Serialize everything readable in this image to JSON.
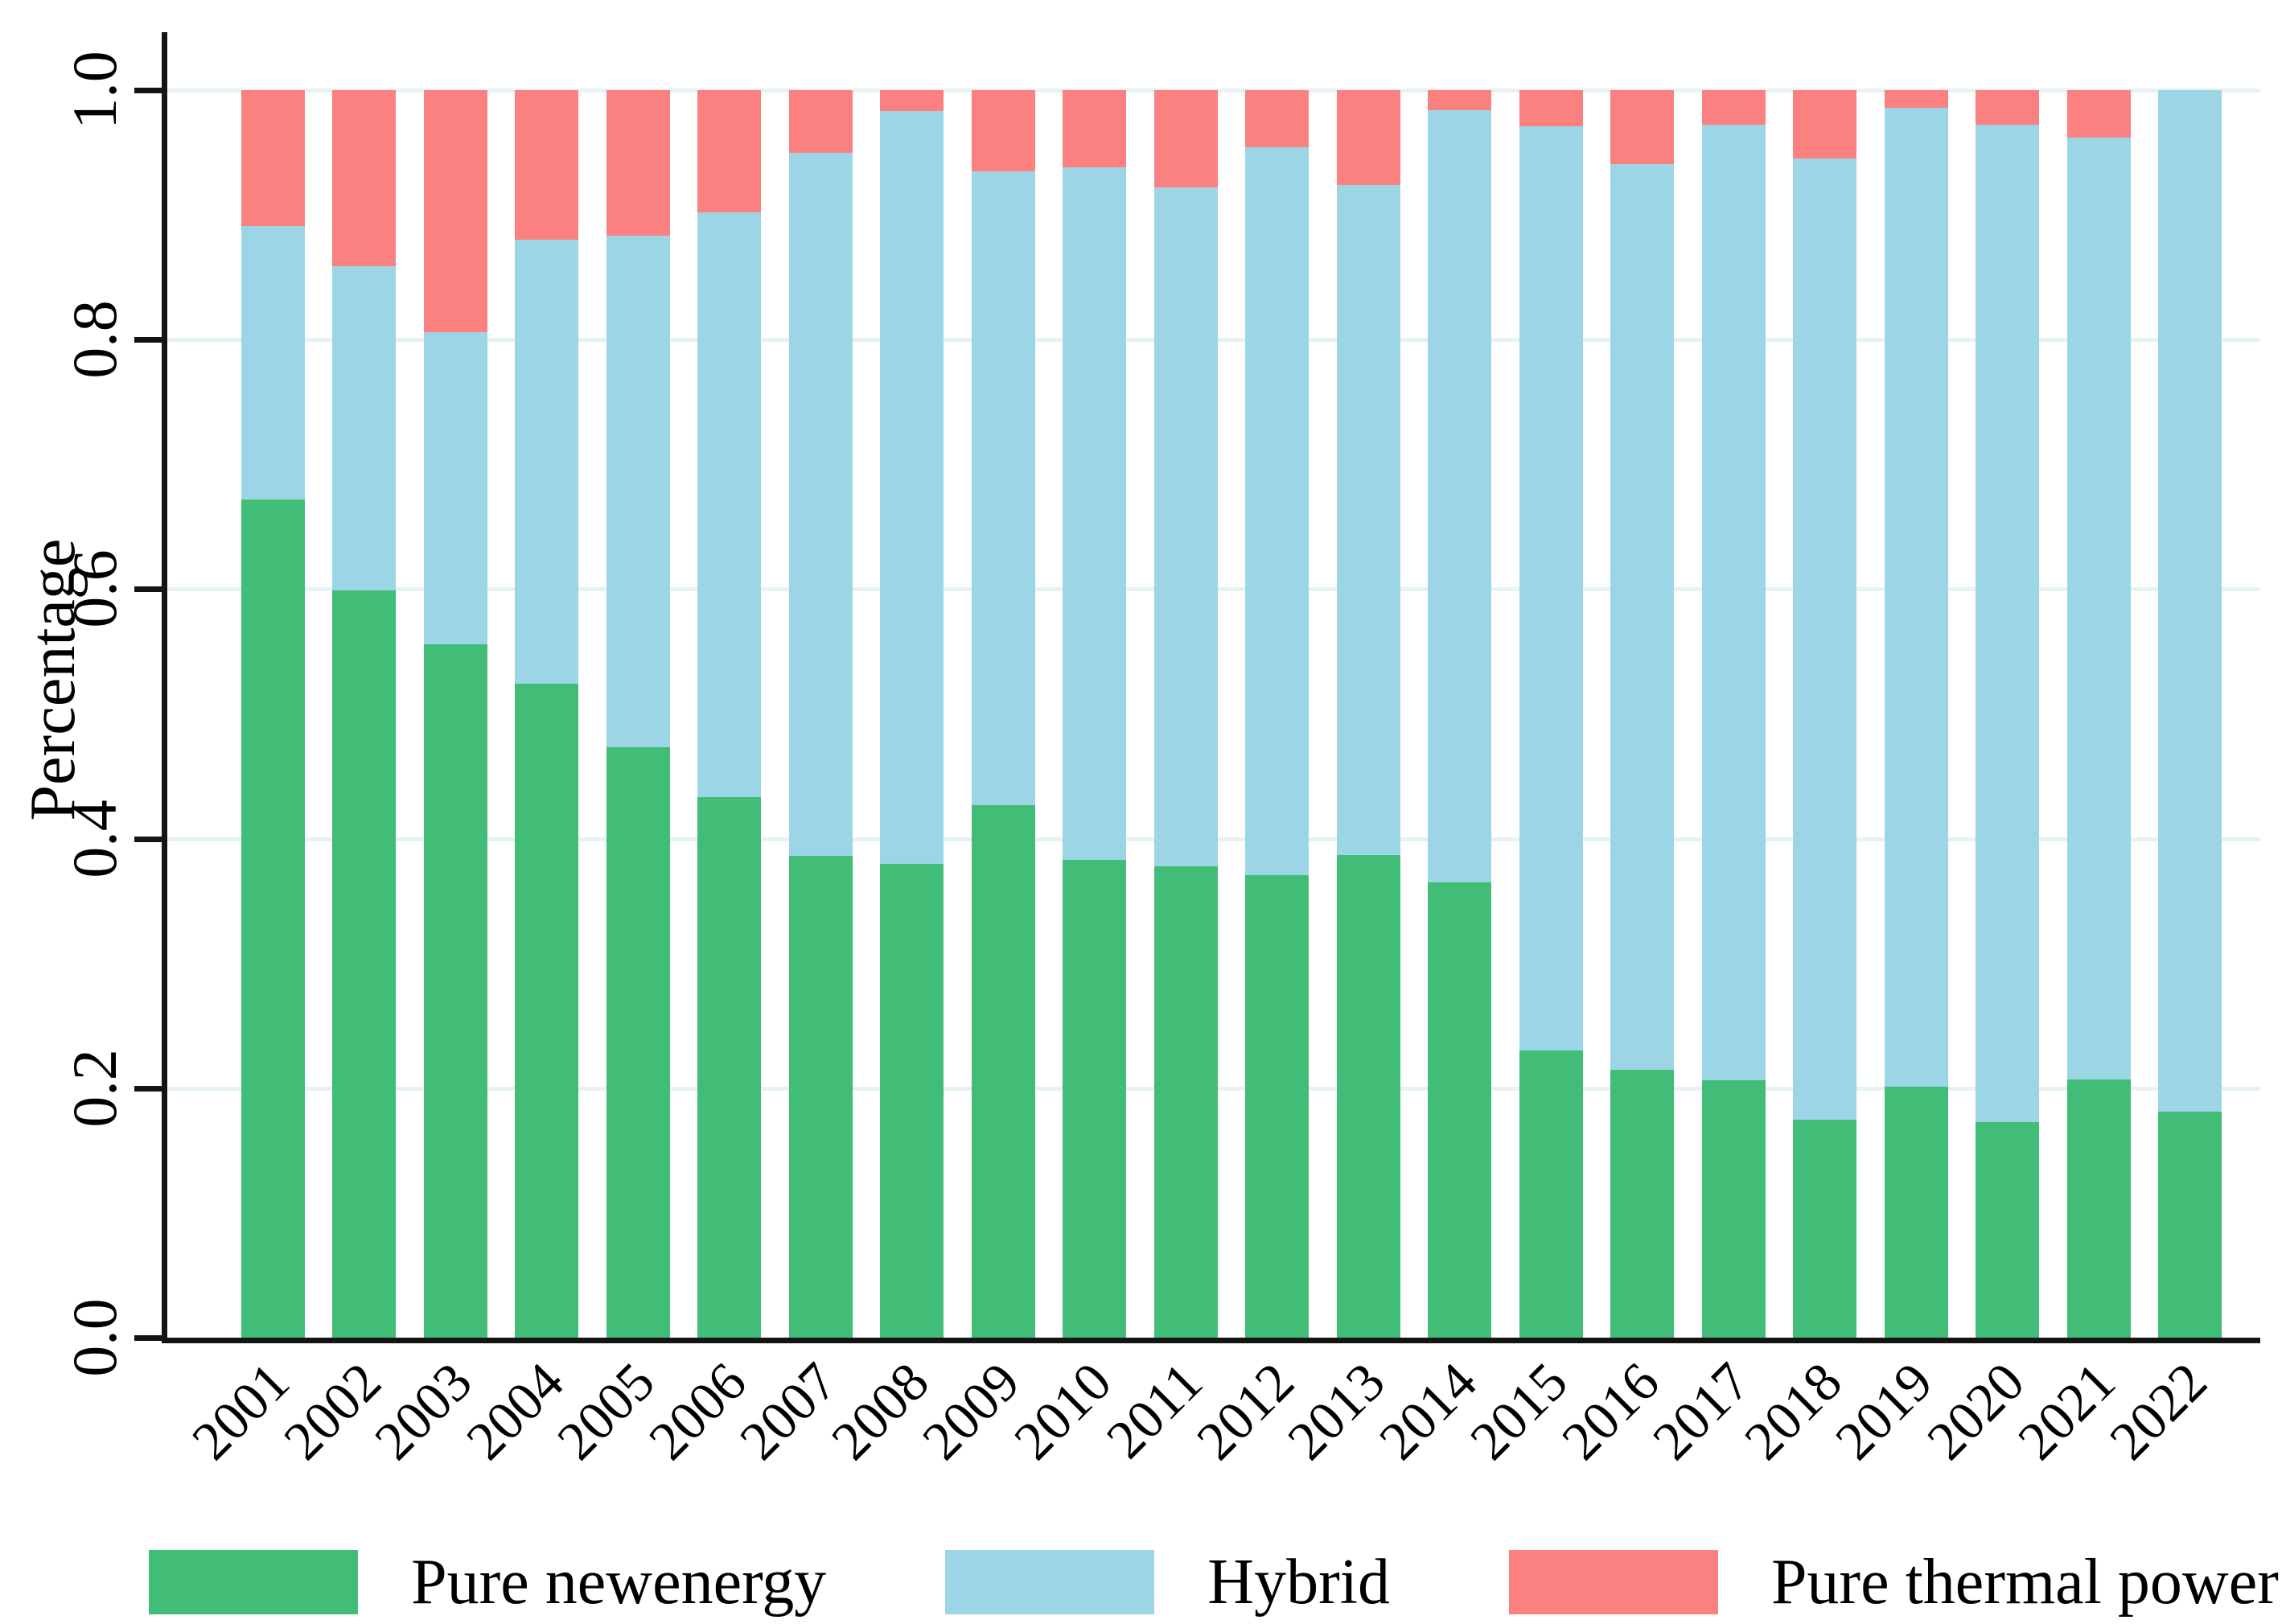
{
  "chart_data": {
    "type": "bar",
    "stacked": true,
    "title": "",
    "xlabel": "",
    "ylabel": "Percentage",
    "ylim": [
      0.0,
      1.0
    ],
    "yticks": [
      "0.0",
      "0.2",
      "0.4",
      "0.6",
      "0.8",
      "1.0"
    ],
    "grid": "horizontal",
    "legend_position": "bottom",
    "x_label_rotation_deg": 45,
    "categories": [
      "2001",
      "2002",
      "2003",
      "2004",
      "2005",
      "2006",
      "2007",
      "2008",
      "2009",
      "2010",
      "2011",
      "2012",
      "2013",
      "2014",
      "2015",
      "2016",
      "2017",
      "2018",
      "2019",
      "2020",
      "2021",
      "2022"
    ],
    "series": [
      {
        "name": "Pure newenergy",
        "color": "#41bd77",
        "values": [
          0.672,
          0.599,
          0.556,
          0.524,
          0.473,
          0.433,
          0.386,
          0.38,
          0.427,
          0.383,
          0.378,
          0.371,
          0.387,
          0.365,
          0.23,
          0.215,
          0.206,
          0.175,
          0.201,
          0.173,
          0.207,
          0.181
        ]
      },
      {
        "name": "Hybrid",
        "color": "#9cd6e6",
        "values": [
          0.219,
          0.26,
          0.25,
          0.356,
          0.41,
          0.469,
          0.564,
          0.603,
          0.508,
          0.555,
          0.544,
          0.583,
          0.537,
          0.619,
          0.741,
          0.726,
          0.766,
          0.77,
          0.785,
          0.799,
          0.755,
          0.819
        ]
      },
      {
        "name": "Pure thermal power",
        "color": "#fb8080",
        "values": [
          0.109,
          0.141,
          0.194,
          0.12,
          0.117,
          0.098,
          0.05,
          0.017,
          0.065,
          0.062,
          0.078,
          0.046,
          0.076,
          0.016,
          0.029,
          0.059,
          0.028,
          0.055,
          0.014,
          0.028,
          0.038,
          0.0
        ]
      }
    ],
    "colors": {
      "grid": "#e7f2f3",
      "axis": "#141414",
      "background": "#ffffff"
    }
  }
}
